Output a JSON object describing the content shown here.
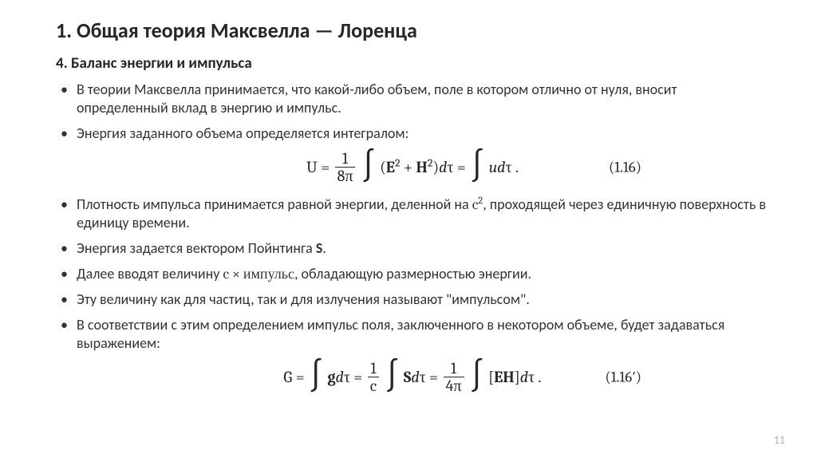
{
  "title": "1. Общая теория Максвелла — Лоренца",
  "subtitle": "4. Баланс энергии и импульса",
  "bullets": {
    "b1": "В теории Максвелла принимается, что какой-либо объем, поле в котором отлично от нуля, вносит определенный вклад в энергию и импульс.",
    "b2": "Энергия заданного объема определяется интегралом:",
    "b3a": "Плотность импульса принимается равной энергии, деленной на ",
    "b3b": ", проходящей через единичную поверхность в единицу времени.",
    "b4a": "Энергия задается вектором Пойнтинга ",
    "b4b": ".",
    "b5a": "Далее вводят величину ",
    "b5b": ", обладающую размерностью энергии.",
    "b6": "Эту величину как для частиц, так и для излучения называют \"импульсом\".",
    "b7": "В соответствии с этим определением импульс поля, заключенного в некотором объеме, будет задаваться выражением:"
  },
  "math": {
    "c2": "c",
    "S": "S",
    "cxi": "c × импульс"
  },
  "eq1": {
    "lhs": "U",
    "frac_num": "1",
    "frac_den": "8π",
    "inner": "(𝐄² + 𝐇²)dτ",
    "rhs_int": "udτ",
    "num": "(1.16)"
  },
  "eq2": {
    "lhs": "G",
    "g_int": "𝐠dτ",
    "frac1_num": "1",
    "frac1_den": "c",
    "S_int": "𝐒dτ",
    "frac2_num": "1",
    "frac2_den": "4π",
    "EH_int": "[𝐄𝐇]dτ",
    "num": "(1.16′)"
  },
  "page": "11"
}
